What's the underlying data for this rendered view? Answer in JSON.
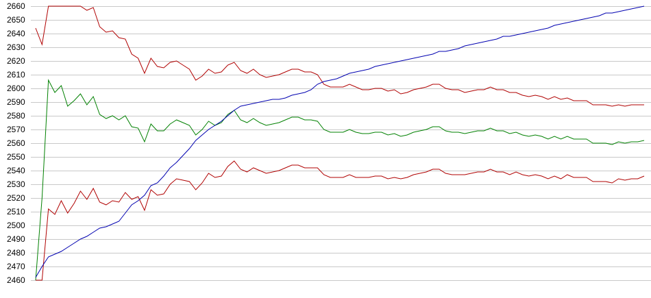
{
  "chart_data": {
    "type": "line",
    "ylim": [
      2460,
      2660
    ],
    "yticks": [
      2460,
      2470,
      2480,
      2490,
      2500,
      2510,
      2520,
      2530,
      2540,
      2550,
      2560,
      2570,
      2580,
      2590,
      2600,
      2610,
      2620,
      2630,
      2640,
      2650,
      2660
    ],
    "grid": true,
    "series": [
      {
        "color": "#b00000",
        "values": [
          2644,
          2632,
          2660,
          2660,
          2660,
          2660,
          2660,
          2660,
          2657,
          2659,
          2645,
          2641,
          2642,
          2637,
          2636,
          2625,
          2622,
          2611,
          2622,
          2616,
          2615,
          2619,
          2620,
          2617,
          2614,
          2606,
          2609,
          2614,
          2611,
          2612,
          2617,
          2619,
          2613,
          2611,
          2614,
          2610,
          2608,
          2609,
          2610,
          2612,
          2614,
          2614,
          2612,
          2612,
          2610,
          2603,
          2601,
          2601,
          2601,
          2603,
          2601,
          2599,
          2599,
          2600,
          2600,
          2598,
          2599,
          2596,
          2597,
          2599,
          2600,
          2601,
          2603,
          2603,
          2600,
          2599,
          2599,
          2597,
          2598,
          2599,
          2599,
          2601,
          2599,
          2599,
          2597,
          2597,
          2595,
          2594,
          2595,
          2594,
          2592,
          2594,
          2592,
          2593,
          2591,
          2591,
          2591,
          2588,
          2588,
          2588,
          2587,
          2588,
          2587,
          2588,
          2588,
          2588
        ]
      },
      {
        "color": "#008000",
        "values": [
          2460,
          2520,
          2606,
          2597,
          2602,
          2587,
          2591,
          2596,
          2588,
          2594,
          2581,
          2578,
          2580,
          2577,
          2580,
          2572,
          2571,
          2561,
          2574,
          2569,
          2569,
          2574,
          2577,
          2575,
          2573,
          2566,
          2570,
          2576,
          2573,
          2575,
          2581,
          2584,
          2577,
          2575,
          2578,
          2575,
          2573,
          2574,
          2575,
          2577,
          2579,
          2579,
          2577,
          2577,
          2576,
          2570,
          2568,
          2568,
          2568,
          2570,
          2568,
          2567,
          2567,
          2568,
          2568,
          2566,
          2567,
          2565,
          2566,
          2568,
          2569,
          2570,
          2572,
          2572,
          2569,
          2568,
          2568,
          2567,
          2568,
          2569,
          2569,
          2571,
          2569,
          2569,
          2567,
          2568,
          2566,
          2565,
          2566,
          2565,
          2563,
          2565,
          2563,
          2565,
          2563,
          2563,
          2563,
          2560,
          2560,
          2560,
          2559,
          2561,
          2560,
          2561,
          2561,
          2562
        ]
      },
      {
        "color": "#b00000",
        "values": [
          2460,
          2460,
          2512,
          2508,
          2518,
          2509,
          2516,
          2525,
          2519,
          2527,
          2517,
          2515,
          2518,
          2517,
          2524,
          2519,
          2521,
          2511,
          2526,
          2522,
          2523,
          2530,
          2534,
          2533,
          2532,
          2526,
          2531,
          2538,
          2535,
          2536,
          2543,
          2547,
          2541,
          2539,
          2542,
          2540,
          2538,
          2539,
          2540,
          2542,
          2544,
          2544,
          2542,
          2542,
          2542,
          2537,
          2535,
          2535,
          2535,
          2537,
          2535,
          2535,
          2535,
          2536,
          2536,
          2534,
          2535,
          2534,
          2535,
          2537,
          2538,
          2539,
          2541,
          2541,
          2538,
          2537,
          2537,
          2537,
          2538,
          2539,
          2539,
          2541,
          2539,
          2539,
          2537,
          2539,
          2537,
          2536,
          2537,
          2536,
          2534,
          2536,
          2534,
          2537,
          2535,
          2535,
          2535,
          2532,
          2532,
          2532,
          2531,
          2534,
          2533,
          2534,
          2534,
          2536
        ]
      },
      {
        "color": "#0000b0",
        "values": [
          2462,
          2470,
          2477,
          2479,
          2481,
          2484,
          2487,
          2490,
          2492,
          2495,
          2498,
          2499,
          2501,
          2503,
          2509,
          2515,
          2518,
          2522,
          2529,
          2531,
          2536,
          2542,
          2546,
          2551,
          2556,
          2562,
          2566,
          2570,
          2573,
          2576,
          2580,
          2584,
          2587,
          2588,
          2589,
          2590,
          2591,
          2592,
          2592,
          2593,
          2595,
          2596,
          2597,
          2599,
          2603,
          2605,
          2606,
          2607,
          2609,
          2611,
          2612,
          2613,
          2614,
          2616,
          2617,
          2618,
          2619,
          2620,
          2621,
          2622,
          2623,
          2624,
          2625,
          2627,
          2627,
          2628,
          2629,
          2631,
          2632,
          2633,
          2634,
          2635,
          2636,
          2638,
          2638,
          2639,
          2640,
          2641,
          2642,
          2643,
          2644,
          2646,
          2647,
          2648,
          2649,
          2650,
          2651,
          2652,
          2653,
          2655,
          2655,
          2656,
          2657,
          2658,
          2659,
          2660
        ]
      }
    ]
  }
}
